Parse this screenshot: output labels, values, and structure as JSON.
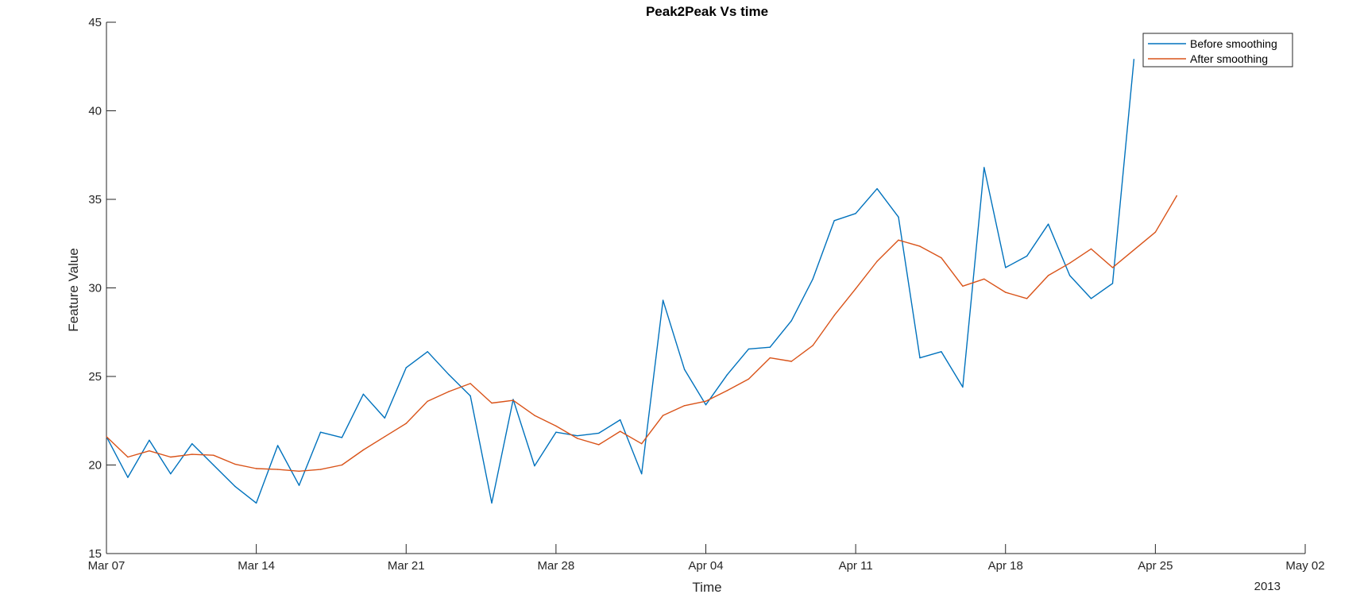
{
  "chart_data": {
    "type": "line",
    "title": "Peak2Peak Vs time",
    "xlabel": "Time",
    "ylabel": "Feature Value",
    "x_secondary_label": "2013",
    "xlim": [
      "2013-03-07",
      "2013-05-02"
    ],
    "ylim": [
      15,
      45
    ],
    "x_ticks": [
      {
        "date": "2013-03-07",
        "label": "Mar 07"
      },
      {
        "date": "2013-03-14",
        "label": "Mar 14"
      },
      {
        "date": "2013-03-21",
        "label": "Mar 21"
      },
      {
        "date": "2013-03-28",
        "label": "Mar 28"
      },
      {
        "date": "2013-04-04",
        "label": "Apr 04"
      },
      {
        "date": "2013-04-11",
        "label": "Apr 11"
      },
      {
        "date": "2013-04-18",
        "label": "Apr 18"
      },
      {
        "date": "2013-04-25",
        "label": "Apr 25"
      },
      {
        "date": "2013-05-02",
        "label": "May 02"
      }
    ],
    "y_ticks": [
      15,
      20,
      25,
      30,
      35,
      40,
      45
    ],
    "grid": false,
    "legend_position": "top-right",
    "x": [
      "2013-03-07",
      "2013-03-08",
      "2013-03-09",
      "2013-03-10",
      "2013-03-11",
      "2013-03-12",
      "2013-03-13",
      "2013-03-14",
      "2013-03-15",
      "2013-03-16",
      "2013-03-17",
      "2013-03-18",
      "2013-03-19",
      "2013-03-20",
      "2013-03-21",
      "2013-03-22",
      "2013-03-23",
      "2013-03-24",
      "2013-03-25",
      "2013-03-26",
      "2013-03-27",
      "2013-03-28",
      "2013-03-29",
      "2013-03-30",
      "2013-03-31",
      "2013-04-01",
      "2013-04-02",
      "2013-04-03",
      "2013-04-04",
      "2013-04-05",
      "2013-04-06",
      "2013-04-07",
      "2013-04-08",
      "2013-04-09",
      "2013-04-10",
      "2013-04-11",
      "2013-04-12",
      "2013-04-13",
      "2013-04-14",
      "2013-04-15",
      "2013-04-16",
      "2013-04-17",
      "2013-04-18",
      "2013-04-19",
      "2013-04-20",
      "2013-04-21",
      "2013-04-22",
      "2013-04-23",
      "2013-04-24",
      "2013-04-25",
      "2013-04-26"
    ],
    "series": [
      {
        "name": "Before smoothing",
        "color": "#0072BD",
        "values": [
          21.6,
          19.3,
          21.4,
          19.5,
          21.2,
          20.0,
          18.8,
          17.85,
          21.1,
          18.85,
          21.85,
          21.55,
          24.0,
          22.65,
          25.5,
          26.4,
          25.1,
          23.9,
          17.85,
          23.7,
          19.95,
          21.85,
          21.65,
          21.8,
          22.55,
          19.5,
          29.3,
          25.4,
          23.4,
          25.1,
          26.55,
          26.65,
          28.15,
          30.5,
          33.8,
          34.2,
          35.6,
          34.0,
          26.05,
          26.4,
          24.4,
          36.8,
          31.15,
          31.8,
          33.6,
          30.7,
          29.4,
          30.25,
          42.9,
          null,
          null
        ]
      },
      {
        "name": "After smoothing",
        "color": "#D95319",
        "values": [
          21.6,
          20.45,
          20.8,
          20.45,
          20.6,
          20.55,
          20.05,
          19.8,
          19.75,
          19.65,
          19.75,
          20.0,
          20.85,
          21.6,
          22.35,
          23.6,
          24.15,
          24.6,
          23.5,
          23.65,
          22.8,
          22.2,
          21.5,
          21.15,
          21.9,
          21.2,
          22.8,
          23.35,
          23.6,
          24.2,
          24.85,
          26.05,
          25.85,
          26.75,
          28.45,
          29.95,
          31.5,
          32.7,
          32.35,
          31.7,
          30.1,
          30.5,
          29.75,
          29.4,
          30.7,
          31.4,
          32.2,
          31.15,
          null,
          33.15,
          35.2
        ]
      }
    ]
  }
}
